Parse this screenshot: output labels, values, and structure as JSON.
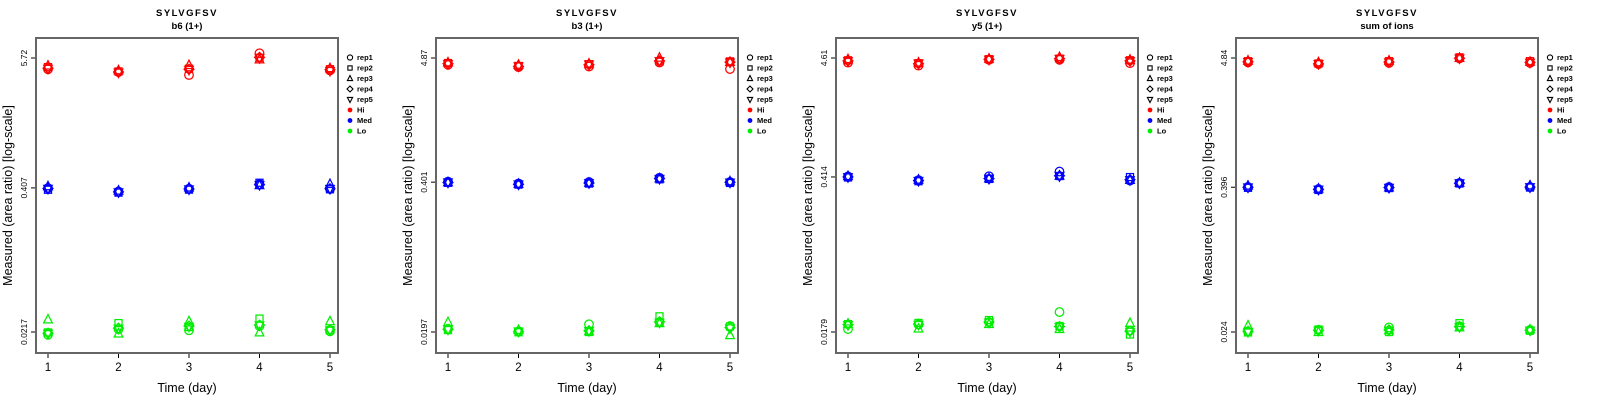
{
  "figure": {
    "background": "#ffffff",
    "frame_color": "#666666",
    "peptide": "SYLVGFSV"
  },
  "axes": {
    "xlabel": "Time (day)",
    "ylabel": "Measured (area ratio) [log-scale]",
    "xticks": [
      "1",
      "2",
      "3",
      "4",
      "5"
    ]
  },
  "legend": {
    "reps": [
      {
        "label": "rep1",
        "symbol": "circle"
      },
      {
        "label": "rep2",
        "symbol": "square"
      },
      {
        "label": "rep3",
        "symbol": "triangle"
      },
      {
        "label": "rep4",
        "symbol": "diamond"
      },
      {
        "label": "rep5",
        "symbol": "triangle-down"
      }
    ],
    "levels": [
      {
        "label": "Hi",
        "color": "#FF0000"
      },
      {
        "label": "Med",
        "color": "#0000FF"
      },
      {
        "label": "Lo",
        "color": "#00EE00"
      }
    ],
    "rep_symbol_color": "#000000"
  },
  "chart_data": [
    {
      "type": "scatter",
      "title": "SYLVGFSV",
      "subtitle": "b6 (1+)",
      "xlabel": "Time (day)",
      "ylabel": "Measured (area ratio) [log-scale]",
      "x": [
        1,
        2,
        3,
        4,
        5
      ],
      "ytick_labels": [
        "5.72",
        "0.407",
        "0.0217"
      ],
      "series": [
        {
          "level": "Hi",
          "rep": "rep1",
          "symbol": "circle",
          "values": [
            4.55,
            4.3,
            4.05,
            6.3,
            4.45
          ]
        },
        {
          "level": "Hi",
          "rep": "rep2",
          "symbol": "square",
          "values": [
            4.75,
            4.35,
            4.6,
            5.75,
            4.55
          ]
        },
        {
          "level": "Hi",
          "rep": "rep3",
          "symbol": "triangle",
          "values": [
            4.9,
            4.45,
            4.95,
            5.55,
            4.65
          ]
        },
        {
          "level": "Hi",
          "rep": "rep4",
          "symbol": "diamond",
          "values": [
            4.65,
            4.3,
            4.55,
            5.8,
            4.5
          ]
        },
        {
          "level": "Hi",
          "rep": "rep5",
          "symbol": "triangle-down",
          "values": [
            4.6,
            4.25,
            4.5,
            5.7,
            4.4
          ]
        },
        {
          "level": "Med",
          "rep": "rep1",
          "symbol": "circle",
          "values": [
            0.405,
            0.378,
            0.4,
            0.438,
            0.398
          ]
        },
        {
          "level": "Med",
          "rep": "rep2",
          "symbol": "square",
          "values": [
            0.392,
            0.37,
            0.393,
            0.452,
            0.396
          ]
        },
        {
          "level": "Med",
          "rep": "rep3",
          "symbol": "triangle",
          "values": [
            0.42,
            0.385,
            0.41,
            0.43,
            0.44
          ]
        },
        {
          "level": "Med",
          "rep": "rep4",
          "symbol": "diamond",
          "values": [
            0.402,
            0.375,
            0.398,
            0.435,
            0.4
          ]
        },
        {
          "level": "Med",
          "rep": "rep5",
          "symbol": "triangle-down",
          "values": [
            0.4,
            0.372,
            0.395,
            0.432,
            0.399
          ]
        },
        {
          "level": "Lo",
          "rep": "rep1",
          "symbol": "circle",
          "values": [
            0.0205,
            0.023,
            0.0225,
            0.0245,
            0.022
          ]
        },
        {
          "level": "Lo",
          "rep": "rep2",
          "symbol": "square",
          "values": [
            0.0215,
            0.026,
            0.024,
            0.0285,
            0.0225
          ]
        },
        {
          "level": "Lo",
          "rep": "rep3",
          "symbol": "triangle",
          "values": [
            0.028,
            0.021,
            0.027,
            0.0215,
            0.027
          ]
        },
        {
          "level": "Lo",
          "rep": "rep4",
          "symbol": "diamond",
          "values": [
            0.0212,
            0.0235,
            0.0245,
            0.025,
            0.0228
          ]
        },
        {
          "level": "Lo",
          "rep": "rep5",
          "symbol": "triangle-down",
          "values": [
            0.021,
            0.0232,
            0.0242,
            0.0248,
            0.0224
          ]
        }
      ]
    },
    {
      "type": "scatter",
      "title": "SYLVGFSV",
      "subtitle": "b3 (1+)",
      "xlabel": "Time (day)",
      "ylabel": "Measured (area ratio) [log-scale]",
      "x": [
        1,
        2,
        3,
        4,
        5
      ],
      "ytick_labels": [
        "4.87",
        "0.401",
        "0.0197"
      ],
      "series": [
        {
          "level": "Hi",
          "rep": "rep1",
          "symbol": "circle",
          "values": [
            4.25,
            4.05,
            4.1,
            4.45,
            3.9
          ]
        },
        {
          "level": "Hi",
          "rep": "rep2",
          "symbol": "square",
          "values": [
            4.4,
            4.15,
            4.3,
            4.55,
            4.55
          ]
        },
        {
          "level": "Hi",
          "rep": "rep3",
          "symbol": "triangle",
          "values": [
            4.45,
            4.25,
            4.35,
            4.9,
            4.5
          ]
        },
        {
          "level": "Hi",
          "rep": "rep4",
          "symbol": "diamond",
          "values": [
            4.35,
            4.1,
            4.25,
            4.6,
            4.48
          ]
        },
        {
          "level": "Hi",
          "rep": "rep5",
          "symbol": "triangle-down",
          "values": [
            4.3,
            4.12,
            4.28,
            4.58,
            4.45
          ]
        },
        {
          "level": "Med",
          "rep": "rep1",
          "symbol": "circle",
          "values": [
            0.405,
            0.39,
            0.402,
            0.438,
            0.402
          ]
        },
        {
          "level": "Med",
          "rep": "rep2",
          "symbol": "square",
          "values": [
            0.396,
            0.382,
            0.39,
            0.425,
            0.395
          ]
        },
        {
          "level": "Med",
          "rep": "rep3",
          "symbol": "triangle",
          "values": [
            0.4,
            0.388,
            0.396,
            0.432,
            0.408
          ]
        },
        {
          "level": "Med",
          "rep": "rep4",
          "symbol": "diamond",
          "values": [
            0.398,
            0.384,
            0.394,
            0.43,
            0.4
          ]
        },
        {
          "level": "Med",
          "rep": "rep5",
          "symbol": "triangle-down",
          "values": [
            0.399,
            0.383,
            0.393,
            0.428,
            0.398
          ]
        },
        {
          "level": "Lo",
          "rep": "rep1",
          "symbol": "circle",
          "values": [
            0.021,
            0.02,
            0.023,
            0.024,
            0.0222
          ]
        },
        {
          "level": "Lo",
          "rep": "rep2",
          "symbol": "square",
          "values": [
            0.0205,
            0.0196,
            0.0197,
            0.027,
            0.022
          ]
        },
        {
          "level": "Lo",
          "rep": "rep3",
          "symbol": "triangle",
          "values": [
            0.024,
            0.0205,
            0.02,
            0.0235,
            0.0185
          ]
        },
        {
          "level": "Lo",
          "rep": "rep4",
          "symbol": "diamond",
          "values": [
            0.0208,
            0.0198,
            0.0202,
            0.0242,
            0.0215
          ]
        },
        {
          "level": "Lo",
          "rep": "rep5",
          "symbol": "triangle-down",
          "values": [
            0.0207,
            0.0199,
            0.0201,
            0.0238,
            0.0212
          ]
        }
      ]
    },
    {
      "type": "scatter",
      "title": "SYLVGFSV",
      "subtitle": "y5 (1+)",
      "xlabel": "Time (day)",
      "ylabel": "Measured (area ratio) [log-scale]",
      "x": [
        1,
        2,
        3,
        4,
        5
      ],
      "ytick_labels": [
        "4.61",
        "0.414",
        "0.0179"
      ],
      "series": [
        {
          "level": "Hi",
          "rep": "rep1",
          "symbol": "circle",
          "values": [
            4.2,
            3.95,
            4.45,
            4.45,
            4.15
          ]
        },
        {
          "level": "Hi",
          "rep": "rep2",
          "symbol": "square",
          "values": [
            4.4,
            4.15,
            4.5,
            4.55,
            4.4
          ]
        },
        {
          "level": "Hi",
          "rep": "rep3",
          "symbol": "triangle",
          "values": [
            4.5,
            4.2,
            4.55,
            4.7,
            4.45
          ]
        },
        {
          "level": "Hi",
          "rep": "rep4",
          "symbol": "diamond",
          "values": [
            4.35,
            4.1,
            4.48,
            4.55,
            4.35
          ]
        },
        {
          "level": "Hi",
          "rep": "rep5",
          "symbol": "triangle-down",
          "values": [
            4.32,
            4.12,
            4.46,
            4.52,
            4.33
          ]
        },
        {
          "level": "Med",
          "rep": "rep1",
          "symbol": "circle",
          "values": [
            0.418,
            0.388,
            0.42,
            0.462,
            0.385
          ]
        },
        {
          "level": "Med",
          "rep": "rep2",
          "symbol": "square",
          "values": [
            0.41,
            0.38,
            0.398,
            0.422,
            0.413
          ]
        },
        {
          "level": "Med",
          "rep": "rep3",
          "symbol": "triangle",
          "values": [
            0.422,
            0.392,
            0.402,
            0.425,
            0.39
          ]
        },
        {
          "level": "Med",
          "rep": "rep4",
          "symbol": "diamond",
          "values": [
            0.414,
            0.384,
            0.4,
            0.424,
            0.392
          ]
        },
        {
          "level": "Med",
          "rep": "rep5",
          "symbol": "triangle-down",
          "values": [
            0.412,
            0.382,
            0.399,
            0.42,
            0.388
          ]
        },
        {
          "level": "Lo",
          "rep": "rep1",
          "symbol": "circle",
          "values": [
            0.019,
            0.0208,
            0.0218,
            0.0268,
            0.0185
          ]
        },
        {
          "level": "Lo",
          "rep": "rep2",
          "symbol": "square",
          "values": [
            0.021,
            0.0215,
            0.0228,
            0.0202,
            0.017
          ]
        },
        {
          "level": "Lo",
          "rep": "rep3",
          "symbol": "triangle",
          "values": [
            0.0212,
            0.0192,
            0.021,
            0.019,
            0.0215
          ]
        },
        {
          "level": "Lo",
          "rep": "rep4",
          "symbol": "diamond",
          "values": [
            0.0208,
            0.021,
            0.022,
            0.02,
            0.0182
          ]
        },
        {
          "level": "Lo",
          "rep": "rep5",
          "symbol": "triangle-down",
          "values": [
            0.0206,
            0.0207,
            0.0217,
            0.0198,
            0.018
          ]
        }
      ]
    },
    {
      "type": "scatter",
      "title": "SYLVGFSV",
      "subtitle": "sum of ions",
      "xlabel": "Time (day)",
      "ylabel": "Measured (area ratio) [log-scale]",
      "x": [
        1,
        2,
        3,
        4,
        5
      ],
      "ytick_labels": [
        "4.84",
        "0.396",
        "0.024"
      ],
      "series": [
        {
          "level": "Hi",
          "rep": "rep1",
          "symbol": "circle",
          "values": [
            4.45,
            4.3,
            4.4,
            4.8,
            4.4
          ]
        },
        {
          "level": "Hi",
          "rep": "rep2",
          "symbol": "square",
          "values": [
            4.55,
            4.35,
            4.55,
            4.9,
            4.55
          ]
        },
        {
          "level": "Hi",
          "rep": "rep3",
          "symbol": "triangle",
          "values": [
            4.6,
            4.45,
            4.6,
            4.85,
            4.5
          ]
        },
        {
          "level": "Hi",
          "rep": "rep4",
          "symbol": "diamond",
          "values": [
            4.5,
            4.32,
            4.48,
            4.82,
            4.45
          ]
        },
        {
          "level": "Hi",
          "rep": "rep5",
          "symbol": "triangle-down",
          "values": [
            4.48,
            4.3,
            4.45,
            4.8,
            4.42
          ]
        },
        {
          "level": "Med",
          "rep": "rep1",
          "symbol": "circle",
          "values": [
            0.398,
            0.382,
            0.398,
            0.43,
            0.398
          ]
        },
        {
          "level": "Med",
          "rep": "rep2",
          "symbol": "square",
          "values": [
            0.392,
            0.376,
            0.39,
            0.426,
            0.394
          ]
        },
        {
          "level": "Med",
          "rep": "rep3",
          "symbol": "triangle",
          "values": [
            0.408,
            0.385,
            0.395,
            0.432,
            0.41
          ]
        },
        {
          "level": "Med",
          "rep": "rep4",
          "symbol": "diamond",
          "values": [
            0.396,
            0.38,
            0.393,
            0.428,
            0.397
          ]
        },
        {
          "level": "Med",
          "rep": "rep5",
          "symbol": "triangle-down",
          "values": [
            0.395,
            0.378,
            0.392,
            0.427,
            0.396
          ]
        },
        {
          "level": "Lo",
          "rep": "rep1",
          "symbol": "circle",
          "values": [
            0.0242,
            0.025,
            0.0262,
            0.0268,
            0.025
          ]
        },
        {
          "level": "Lo",
          "rep": "rep2",
          "symbol": "square",
          "values": [
            0.0238,
            0.0252,
            0.024,
            0.0285,
            0.0246
          ]
        },
        {
          "level": "Lo",
          "rep": "rep3",
          "symbol": "triangle",
          "values": [
            0.0272,
            0.024,
            0.0248,
            0.0262,
            0.0252
          ]
        },
        {
          "level": "Lo",
          "rep": "rep4",
          "symbol": "diamond",
          "values": [
            0.0244,
            0.0248,
            0.025,
            0.0266,
            0.0248
          ]
        },
        {
          "level": "Lo",
          "rep": "rep5",
          "symbol": "triangle-down",
          "values": [
            0.024,
            0.0246,
            0.0247,
            0.0264,
            0.0247
          ]
        }
      ]
    }
  ]
}
